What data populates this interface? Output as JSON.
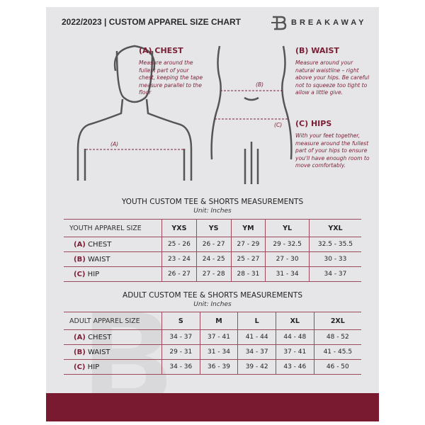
{
  "header": {
    "title": "2022/2023  |  CUSTOM APPAREL SIZE CHART",
    "logo_text": "BREAKAWAY"
  },
  "guide": {
    "chest": {
      "heading": "(A) CHEST",
      "text": "Measure around the fullest part of your chest, keeping the tape measure parallel to the floor",
      "marker": "(A)"
    },
    "waist": {
      "heading": "(B) WAIST",
      "text": "Measure around your natural waistline – right above your hips. Be careful not to squeeze too tight to allow a little give.",
      "marker": "(B)"
    },
    "hips": {
      "heading": "(C) HIPS",
      "text": "With your feet together, measure around the fullest part of your hips to ensure you'll have enough room to move comfortably.",
      "marker": "(C)"
    }
  },
  "youth": {
    "title": "YOUTH CUSTOM TEE & SHORTS MEASUREMENTS",
    "unit": "Unit: Inches",
    "header": [
      "YOUTH APPAREL SIZE",
      "YXS",
      "YS",
      "YM",
      "YL",
      "YXL"
    ],
    "rows": [
      {
        "tag": "(A)",
        "name": "CHEST",
        "values": [
          "25 - 26",
          "26 - 27",
          "27 - 29",
          "29 - 32.5",
          "32.5 - 35.5"
        ]
      },
      {
        "tag": "(B)",
        "name": "WAIST",
        "values": [
          "23 - 24",
          "24 - 25",
          "25 - 27",
          "27 - 30",
          "30 - 33"
        ]
      },
      {
        "tag": "(C)",
        "name": "HIP",
        "values": [
          "26 - 27",
          "27 - 28",
          "28 - 31",
          "31 - 34",
          "34 - 37"
        ]
      }
    ]
  },
  "adult": {
    "title": "ADULT CUSTOM TEE & SHORTS MEASUREMENTS",
    "unit": "Unit: Inches",
    "header": [
      "ADULT APPAREL SIZE",
      "S",
      "M",
      "L",
      "XL",
      "2XL"
    ],
    "rows": [
      {
        "tag": "(A)",
        "name": "CHEST",
        "values": [
          "34 - 37",
          "37 - 41",
          "41 - 44",
          "44 - 48",
          "48 - 52"
        ]
      },
      {
        "tag": "(B)",
        "name": "WAIST",
        "values": [
          "29 - 31",
          "31 - 34",
          "34 - 37",
          "37 - 41",
          "41 - 45.5"
        ]
      },
      {
        "tag": "(C)",
        "name": "HIP",
        "values": [
          "34 - 36",
          "36 - 39",
          "39 - 42",
          "43 - 46",
          "46 - 50"
        ]
      }
    ]
  },
  "colors": {
    "accent": "#7a1f35",
    "background": "#e6e6e8",
    "footer": "#7a1a31"
  }
}
